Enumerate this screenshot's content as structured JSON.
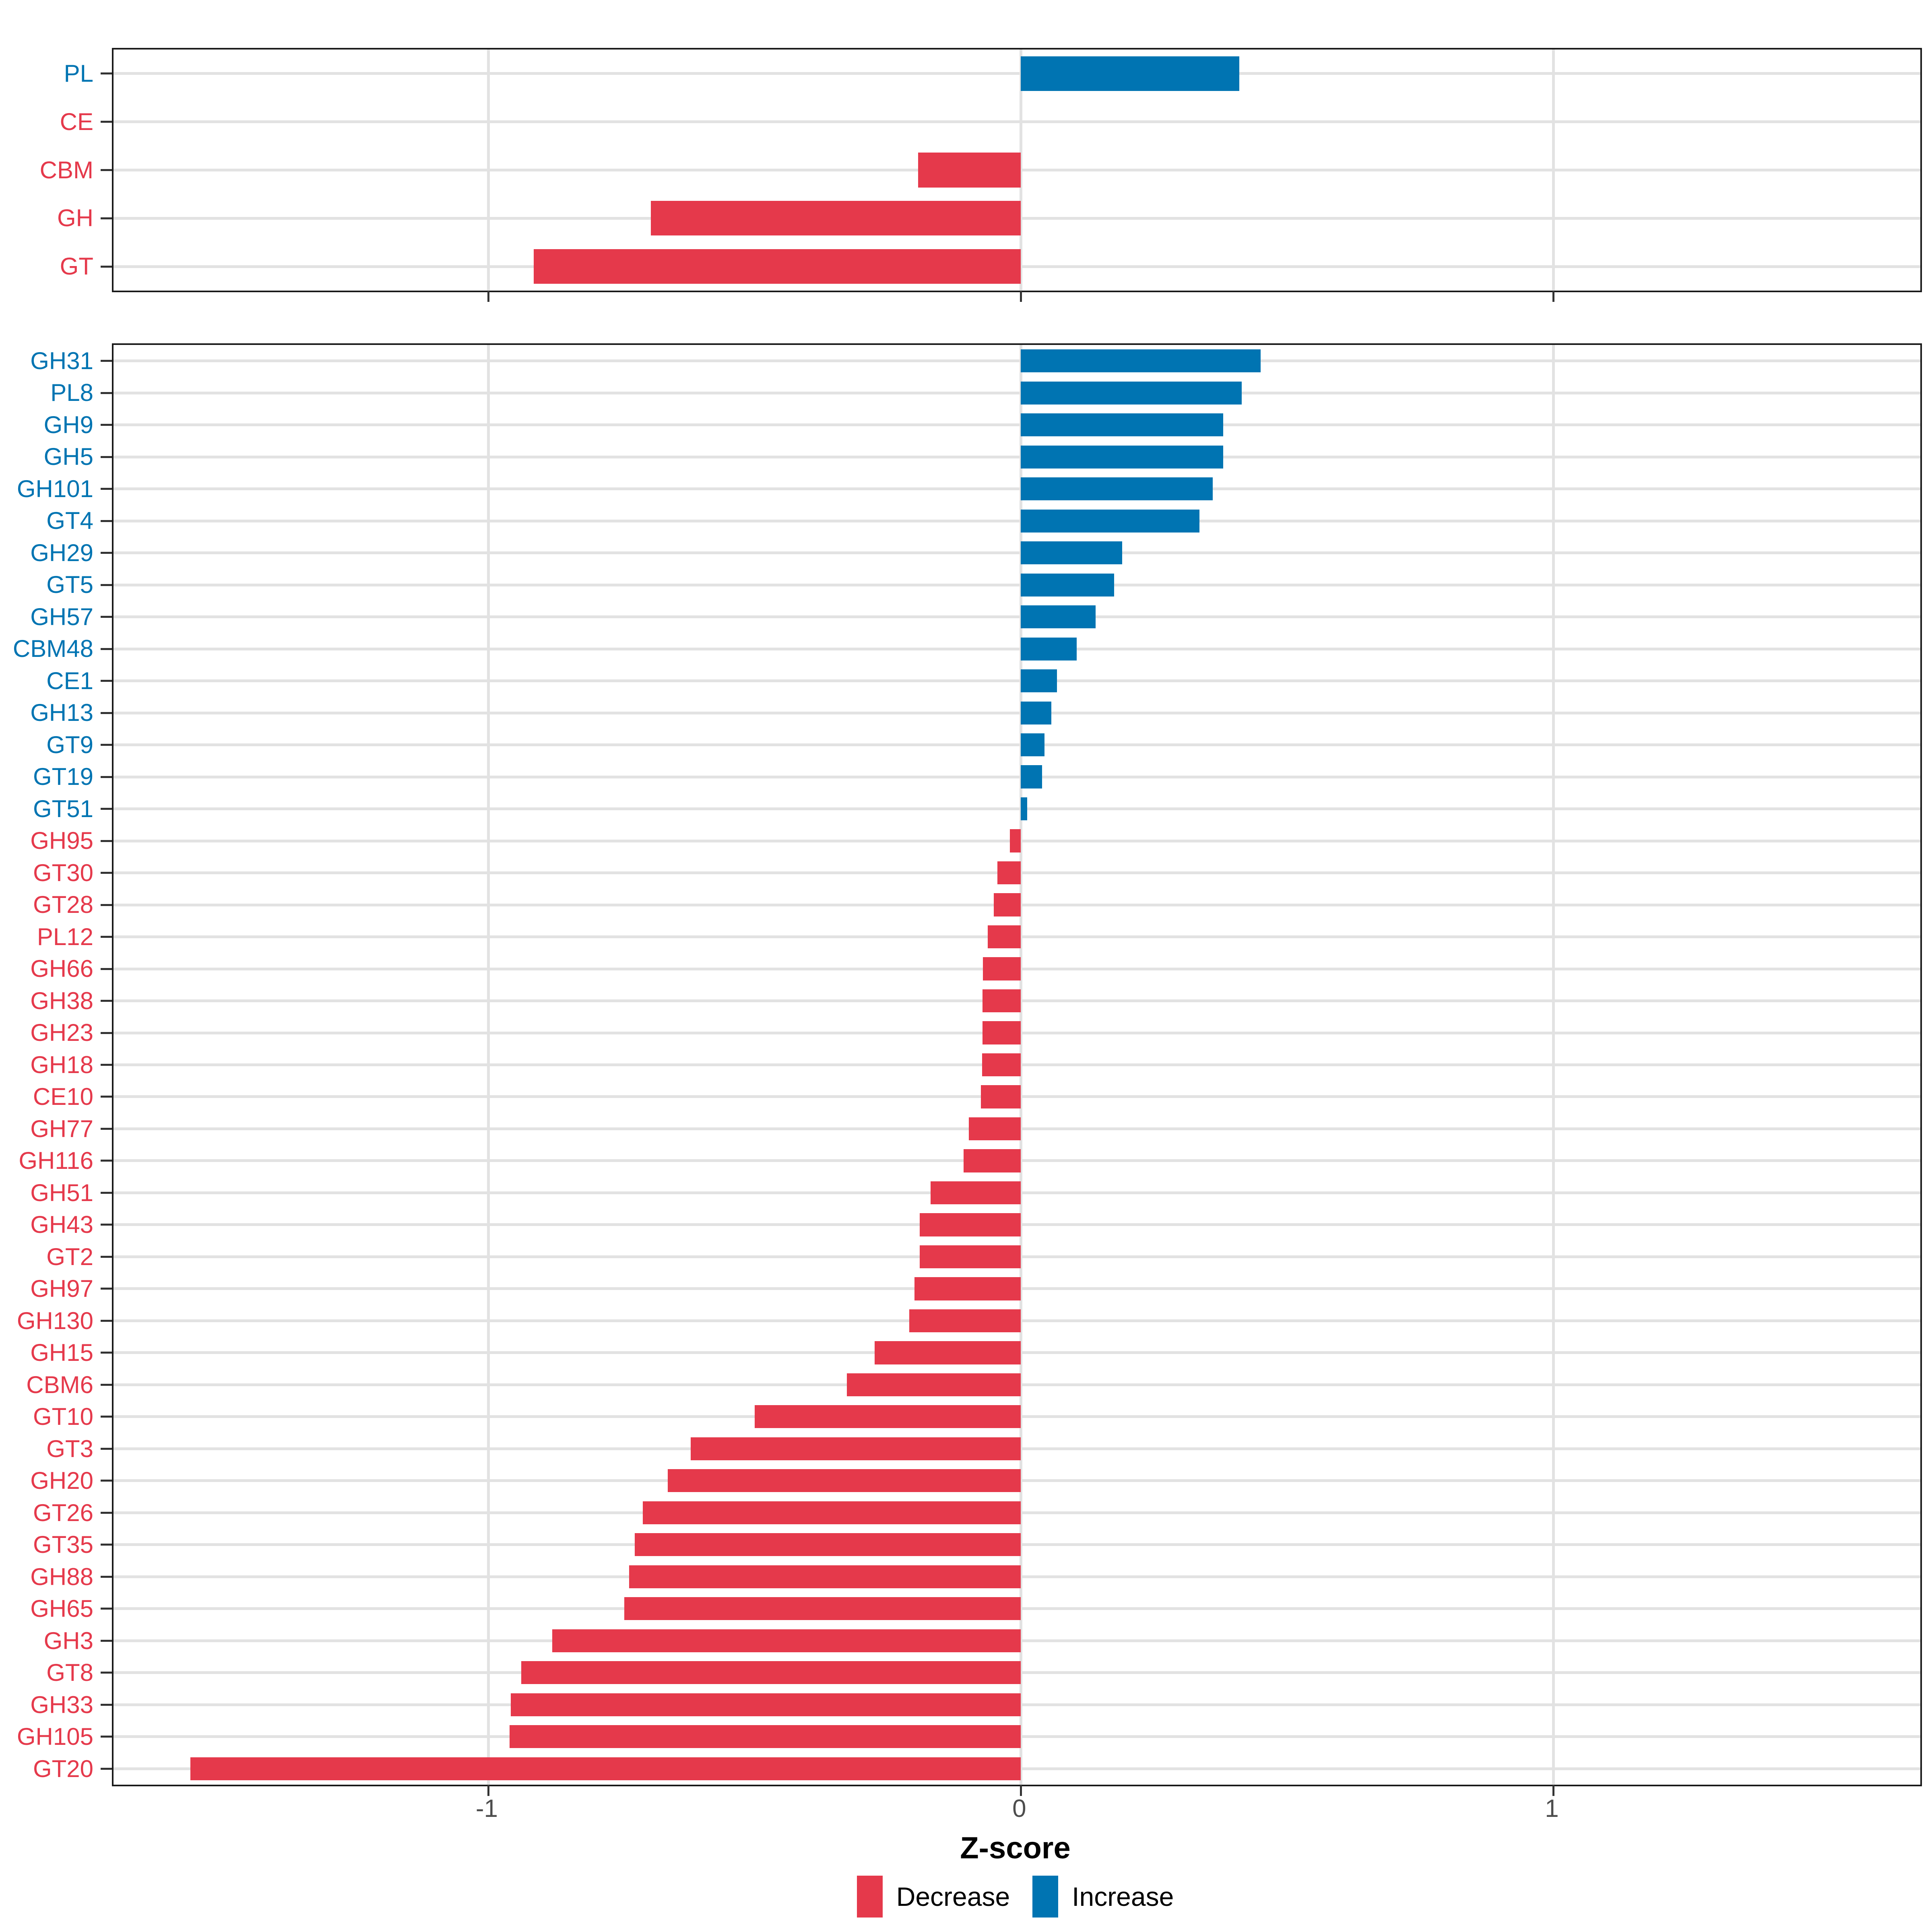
{
  "chart_data": {
    "type": "bar",
    "orientation": "horizontal",
    "title": "",
    "xlabel": "Z-score",
    "ylabel": "",
    "xlim": [
      -1.704,
      1.689
    ],
    "x_ticks": [
      -1,
      0,
      1
    ],
    "x_tick_labels": [
      "-1",
      "0",
      "1"
    ],
    "grid": "on",
    "legend_position": "bottom",
    "colors": {
      "decrease": "#E5394B",
      "increase": "#0074B2"
    },
    "legend": [
      {
        "label": "Decrease",
        "color": "#E5394B"
      },
      {
        "label": "Increase",
        "color": "#0074B2"
      }
    ],
    "panels": [
      {
        "name": "categories",
        "categories": [
          "PL",
          "CE",
          "CBM",
          "GH",
          "GT"
        ],
        "rows": [
          {
            "label": "PL",
            "value": 0.41,
            "direction": "increase"
          },
          {
            "label": "CE",
            "value": 0.0,
            "direction": "decrease"
          },
          {
            "label": "CBM",
            "value": -0.193,
            "direction": "decrease"
          },
          {
            "label": "GH",
            "value": -0.695,
            "direction": "decrease"
          },
          {
            "label": "GT",
            "value": -0.915,
            "direction": "decrease"
          }
        ]
      },
      {
        "name": "families",
        "categories": [
          "GH31",
          "PL8",
          "GH9",
          "GH5",
          "GH101",
          "GT4",
          "GH29",
          "GT5",
          "GH57",
          "CBM48",
          "CE1",
          "GH13",
          "GT9",
          "GT19",
          "GT51",
          "GH95",
          "GT30",
          "GT28",
          "PL12",
          "GH66",
          "GH38",
          "GH23",
          "GH18",
          "CE10",
          "GH77",
          "GH116",
          "GH51",
          "GH43",
          "GT2",
          "GH97",
          "GH130",
          "GH15",
          "CBM6",
          "GT10",
          "GT3",
          "GH20",
          "GT26",
          "GT35",
          "GH88",
          "GH65",
          "GH3",
          "GT8",
          "GH33",
          "GH105",
          "GT20"
        ],
        "rows": [
          {
            "label": "GH31",
            "value": 0.45,
            "direction": "increase"
          },
          {
            "label": "PL8",
            "value": 0.415,
            "direction": "increase"
          },
          {
            "label": "GH9",
            "value": 0.38,
            "direction": "increase"
          },
          {
            "label": "GH5",
            "value": 0.38,
            "direction": "increase"
          },
          {
            "label": "GH101",
            "value": 0.36,
            "direction": "increase"
          },
          {
            "label": "GT4",
            "value": 0.335,
            "direction": "increase"
          },
          {
            "label": "GH29",
            "value": 0.19,
            "direction": "increase"
          },
          {
            "label": "GT5",
            "value": 0.175,
            "direction": "increase"
          },
          {
            "label": "GH57",
            "value": 0.14,
            "direction": "increase"
          },
          {
            "label": "CBM48",
            "value": 0.105,
            "direction": "increase"
          },
          {
            "label": "CE1",
            "value": 0.068,
            "direction": "increase"
          },
          {
            "label": "GH13",
            "value": 0.057,
            "direction": "increase"
          },
          {
            "label": "GT9",
            "value": 0.044,
            "direction": "increase"
          },
          {
            "label": "GT19",
            "value": 0.04,
            "direction": "increase"
          },
          {
            "label": "GT51",
            "value": 0.012,
            "direction": "increase"
          },
          {
            "label": "GH95",
            "value": -0.021,
            "direction": "decrease"
          },
          {
            "label": "GT30",
            "value": -0.044,
            "direction": "decrease"
          },
          {
            "label": "GT28",
            "value": -0.051,
            "direction": "decrease"
          },
          {
            "label": "PL12",
            "value": -0.062,
            "direction": "decrease"
          },
          {
            "label": "GH66",
            "value": -0.071,
            "direction": "decrease"
          },
          {
            "label": "GH38",
            "value": -0.072,
            "direction": "decrease"
          },
          {
            "label": "GH23",
            "value": -0.072,
            "direction": "decrease"
          },
          {
            "label": "GH18",
            "value": -0.073,
            "direction": "decrease"
          },
          {
            "label": "CE10",
            "value": -0.075,
            "direction": "decrease"
          },
          {
            "label": "GH77",
            "value": -0.098,
            "direction": "decrease"
          },
          {
            "label": "GH116",
            "value": -0.108,
            "direction": "decrease"
          },
          {
            "label": "GH51",
            "value": -0.17,
            "direction": "decrease"
          },
          {
            "label": "GH43",
            "value": -0.19,
            "direction": "decrease"
          },
          {
            "label": "GT2",
            "value": -0.19,
            "direction": "decrease"
          },
          {
            "label": "GH97",
            "value": -0.2,
            "direction": "decrease"
          },
          {
            "label": "GH130",
            "value": -0.21,
            "direction": "decrease"
          },
          {
            "label": "GH15",
            "value": -0.275,
            "direction": "decrease"
          },
          {
            "label": "CBM6",
            "value": -0.327,
            "direction": "decrease"
          },
          {
            "label": "GT10",
            "value": -0.5,
            "direction": "decrease"
          },
          {
            "label": "GT3",
            "value": -0.62,
            "direction": "decrease"
          },
          {
            "label": "GH20",
            "value": -0.663,
            "direction": "decrease"
          },
          {
            "label": "GT26",
            "value": -0.71,
            "direction": "decrease"
          },
          {
            "label": "GT35",
            "value": -0.725,
            "direction": "decrease"
          },
          {
            "label": "GH88",
            "value": -0.736,
            "direction": "decrease"
          },
          {
            "label": "GH65",
            "value": -0.745,
            "direction": "decrease"
          },
          {
            "label": "GH3",
            "value": -0.88,
            "direction": "decrease"
          },
          {
            "label": "GT8",
            "value": -0.938,
            "direction": "decrease"
          },
          {
            "label": "GH33",
            "value": -0.958,
            "direction": "decrease"
          },
          {
            "label": "GH105",
            "value": -0.96,
            "direction": "decrease"
          },
          {
            "label": "GT20",
            "value": -1.56,
            "direction": "decrease"
          }
        ]
      }
    ]
  }
}
